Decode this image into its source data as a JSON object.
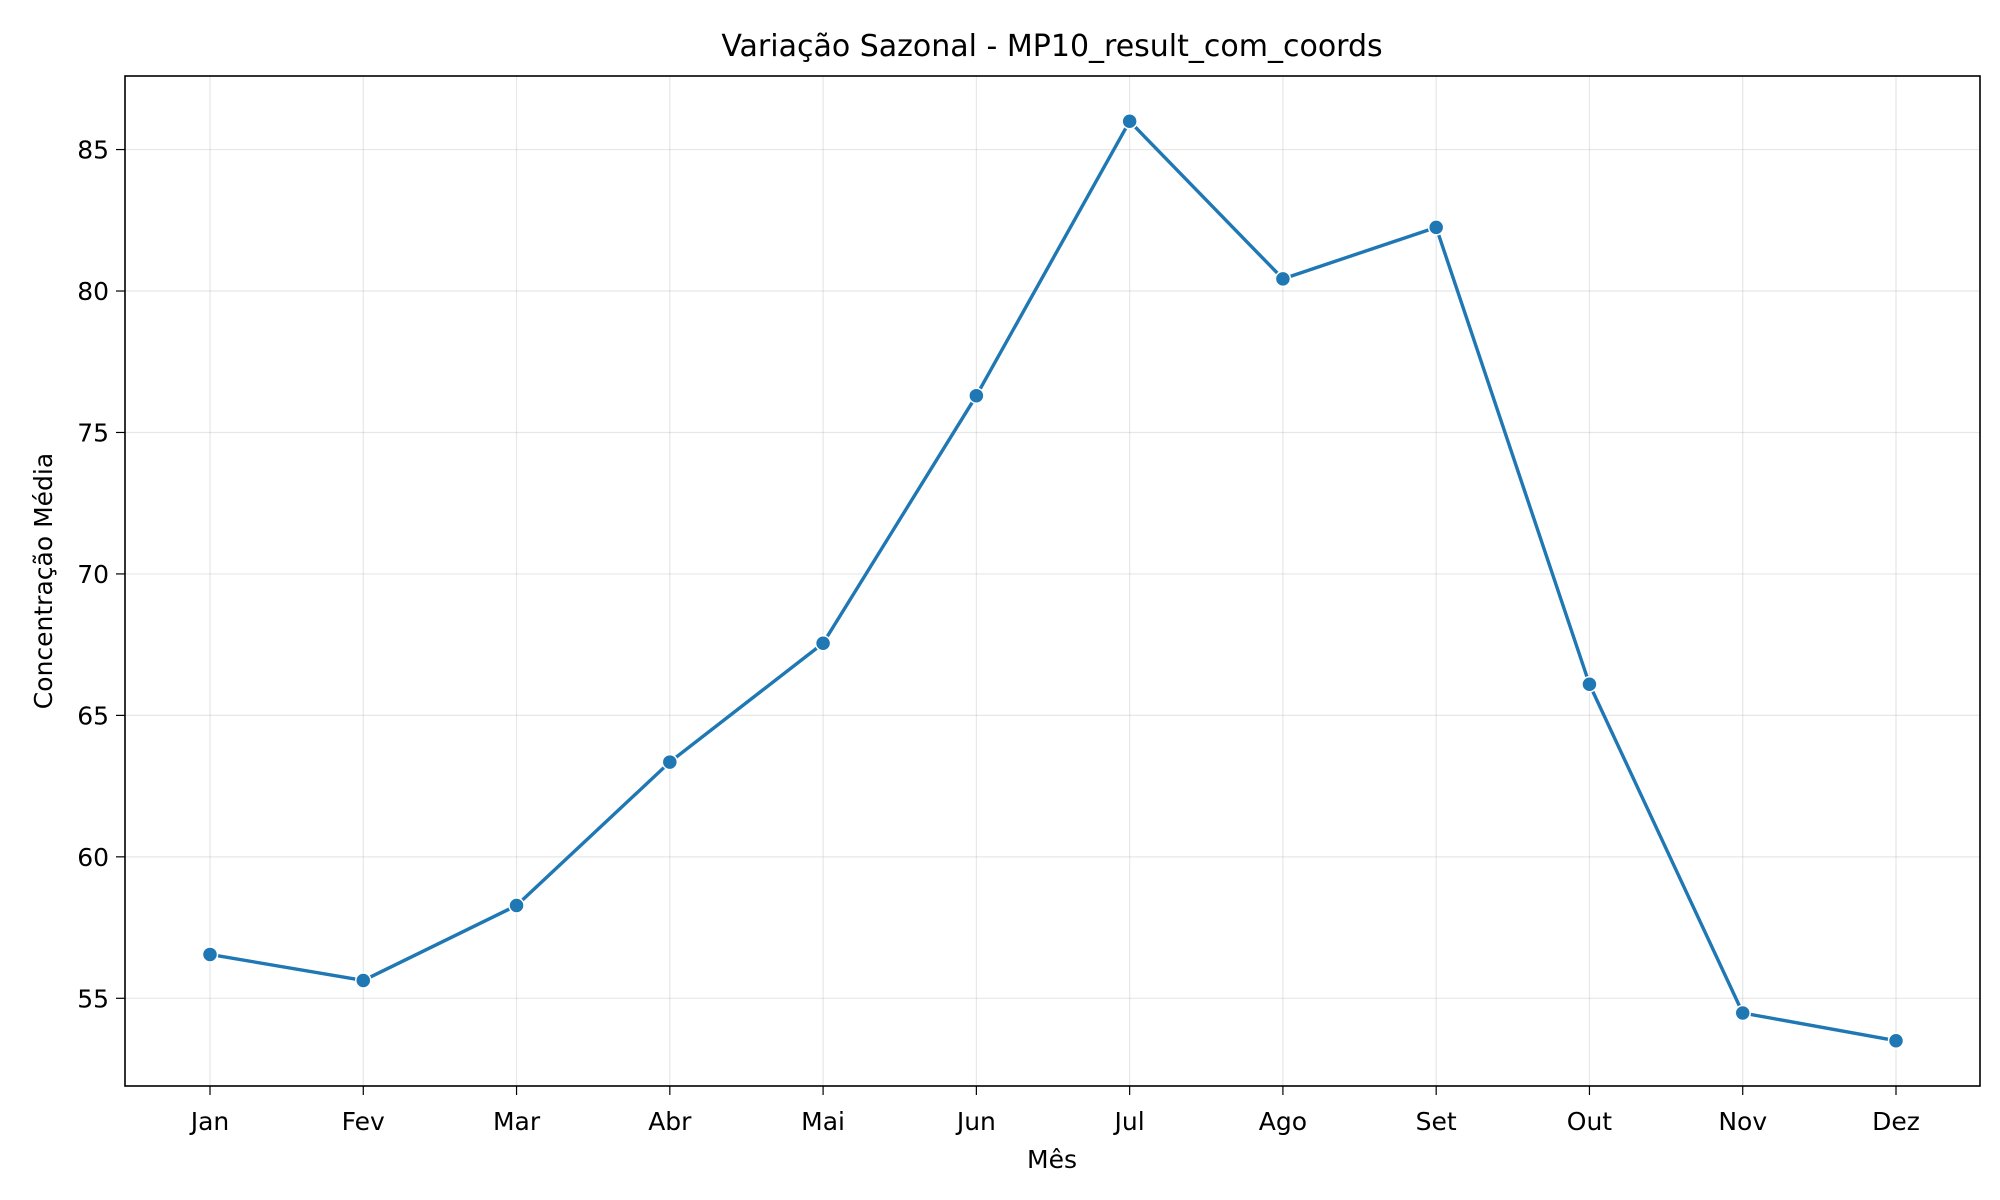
{
  "chart_data": {
    "type": "line",
    "title": "Variação Sazonal - MP10_result_com_coords",
    "xlabel": "Mês",
    "ylabel": "Concentração Média",
    "categories": [
      "Jan",
      "Fev",
      "Mar",
      "Abr",
      "Mai",
      "Jun",
      "Jul",
      "Ago",
      "Set",
      "Out",
      "Nov",
      "Dez"
    ],
    "series": [
      {
        "values": [
          56.55,
          55.63,
          58.28,
          63.35,
          67.55,
          76.3,
          86.0,
          80.43,
          82.25,
          66.1,
          54.48,
          53.5
        ],
        "color": "#1f77b4",
        "marker": "circle"
      }
    ],
    "ylim": [
      51.9,
      87.6
    ],
    "yticks": [
      55,
      60,
      65,
      70,
      75,
      80,
      85
    ],
    "grid": true,
    "legend": "none"
  }
}
